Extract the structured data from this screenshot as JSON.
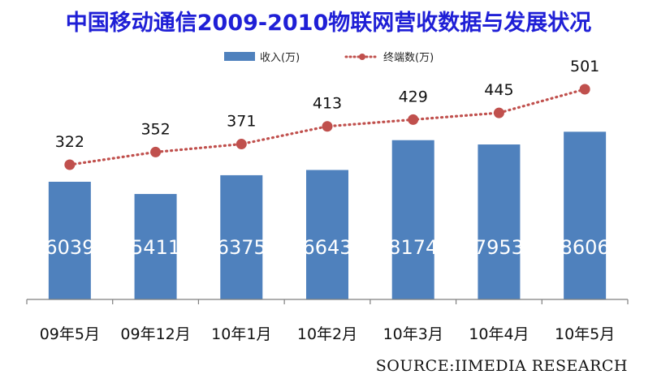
{
  "title": "中国移动通信2009-2010物联网营收数据与发展状况",
  "source": "SOURCE:IIMEDIA RESEARCH",
  "colors": {
    "bar": "#4f81bd",
    "line": "#c0504d",
    "title": "#1f1fd6"
  },
  "chart_data": {
    "type": "bar",
    "title": "中国移动通信2009-2010物联网营收数据与发展状况",
    "categories": [
      "09年5月",
      "09年12月",
      "10年1月",
      "10年2月",
      "10年3月",
      "10年4月",
      "10年5月"
    ],
    "series": [
      {
        "name": "收入(万)",
        "type": "bar",
        "values": [
          6039,
          5411,
          6375,
          6643,
          8174,
          7953,
          8606
        ]
      },
      {
        "name": "终端数(万)",
        "type": "line",
        "values": [
          322,
          352,
          371,
          413,
          429,
          445,
          501
        ]
      }
    ],
    "legend": "top-center",
    "grid": false
  }
}
